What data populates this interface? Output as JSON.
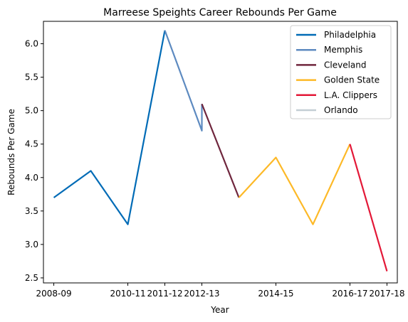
{
  "chart_data": {
    "type": "line",
    "title": "Marreese Speights Career Rebounds Per Game",
    "xlabel": "Year",
    "ylabel": "Rebounds Per Game",
    "x_ticks": [
      "2008-09",
      "2010-11",
      "2011-12",
      "2012-13",
      "2014-15",
      "2016-17",
      "2017-18"
    ],
    "y_ticks": [
      "2.5",
      "3.0",
      "3.5",
      "4.0",
      "4.5",
      "5.0",
      "5.5",
      "6.0"
    ],
    "xlim": [
      -0.28,
      9.28
    ],
    "ylim": [
      2.425,
      6.335
    ],
    "grid": false,
    "legend_position": "top-right",
    "series": [
      {
        "name": "Philadelphia",
        "color": "#006bb6",
        "x": [
          "2008-09",
          "2009-10",
          "2010-11",
          "2011-12"
        ],
        "values": [
          3.7,
          4.1,
          3.3,
          6.2
        ]
      },
      {
        "name": "Memphis",
        "color": "#5d8ac0",
        "x": [
          "2011-12",
          "2012-13",
          "2012-13"
        ],
        "values": [
          6.2,
          4.7,
          5.1
        ]
      },
      {
        "name": "Cleveland",
        "color": "#6f263d",
        "x": [
          "2012-13",
          "2013-14"
        ],
        "values": [
          5.1,
          3.7
        ]
      },
      {
        "name": "Golden State",
        "color": "#fdb927",
        "x": [
          "2013-14",
          "2014-15",
          "2015-16",
          "2016-17"
        ],
        "values": [
          3.7,
          4.3,
          3.3,
          4.5
        ]
      },
      {
        "name": "L.A. Clippers",
        "color": "#e31837",
        "x": [
          "2016-17",
          "2017-18"
        ],
        "values": [
          4.5,
          2.6
        ]
      },
      {
        "name": "Orlando",
        "color": "#c4ced4",
        "x": [],
        "values": []
      }
    ]
  }
}
